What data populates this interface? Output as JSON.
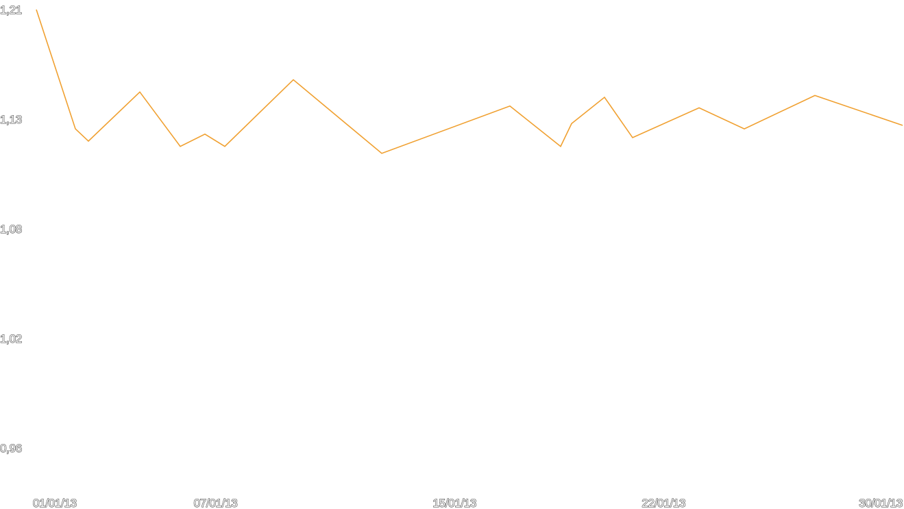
{
  "chart_data": {
    "type": "line",
    "title": "",
    "xlabel": "",
    "ylabel": "",
    "x_tick_labels": [
      "01/01/13",
      "07/01/13",
      "15/01/13",
      "22/01/13",
      "30/01/13"
    ],
    "y_tick_labels": [
      "1,21",
      "1,13",
      "1,08",
      "1,02",
      "0,96"
    ],
    "ylim": [
      0.96,
      1.21
    ],
    "grid": false,
    "legend": "none",
    "line_color": "#f0a030",
    "series": [
      {
        "x": [
          "01/01/13",
          "02/01/13",
          "03/01/13",
          "04/01/13",
          "05/01/13",
          "06/01/13",
          "06/01/13",
          "08/01/13",
          "11/01/13",
          "17/01/13",
          "19/01/13",
          "20/01/13",
          "21/01/13",
          "22/01/13",
          "23/01/13",
          "24/01/13",
          "27/01/13",
          "30/01/13"
        ],
        "values": [
          1.21,
          1.142,
          1.135,
          1.163,
          1.132,
          1.139,
          1.132,
          1.17,
          1.128,
          1.155,
          1.132,
          1.145,
          1.16,
          1.137,
          1.154,
          1.142,
          1.161,
          1.144
        ]
      }
    ]
  }
}
